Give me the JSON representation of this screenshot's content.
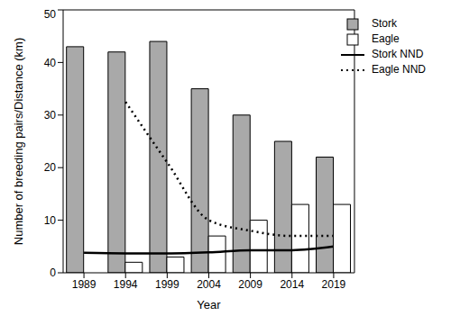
{
  "chart_data": {
    "type": "bar",
    "x_label": "Year",
    "y_label": "Number of breeding pairs/Distance (km)",
    "categories": [
      "1989",
      "1994",
      "1999",
      "2004",
      "2009",
      "2014",
      "2019"
    ],
    "series": [
      {
        "name": "Stork",
        "type": "bar",
        "color": "#a9a9a9",
        "values": [
          43,
          42,
          44,
          35,
          30,
          25,
          22
        ]
      },
      {
        "name": "Eagle",
        "type": "bar",
        "color": "#ffffff",
        "values": [
          0,
          2,
          3,
          7,
          10,
          13,
          13
        ]
      },
      {
        "name": "Stork NND",
        "type": "line",
        "color": "#000000",
        "line_style": "solid",
        "values": [
          3.8,
          3.7,
          3.7,
          3.9,
          4.3,
          4.3,
          5.0
        ]
      },
      {
        "name": "Eagle NND",
        "type": "line",
        "color": "#000000",
        "line_style": "dotted",
        "values": [
          null,
          32.5,
          21,
          10,
          8,
          7,
          7
        ]
      }
    ],
    "ylim": [
      0,
      50
    ],
    "yticks": [
      0,
      10,
      20,
      30,
      40,
      50
    ],
    "grid": false,
    "legend": "top-right"
  }
}
